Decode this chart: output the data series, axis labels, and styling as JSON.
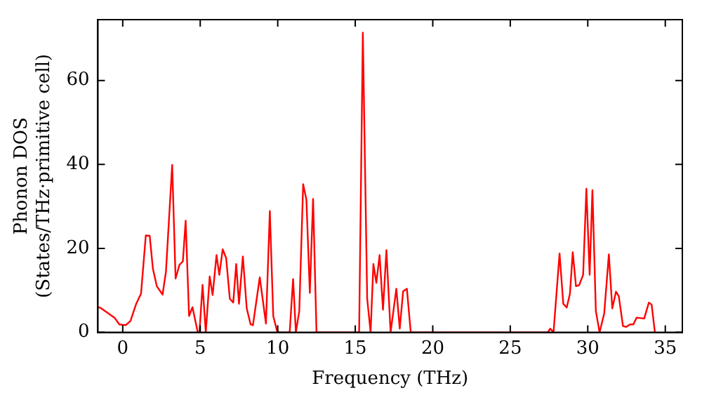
{
  "chart_data": {
    "type": "line",
    "xlabel": "Frequency (THz)",
    "ylabel": "Phonon DOS\n(States/THz·primitive cell)",
    "xlim": [
      -1.6,
      36.1
    ],
    "ylim": [
      0,
      74.5
    ],
    "xticks": [
      0,
      5,
      10,
      15,
      20,
      25,
      30,
      35
    ],
    "yticks": [
      0,
      20,
      40,
      60
    ],
    "grid": false,
    "legend": false,
    "marker": "none",
    "line_style": "solid",
    "series": [
      {
        "color": "#ff0000",
        "x": [
          -1.6,
          -1.46,
          -0.53,
          -0.22,
          0.19,
          0.5,
          0.87,
          1.18,
          1.49,
          1.74,
          1.95,
          2.2,
          2.57,
          2.79,
          3.19,
          3.41,
          3.66,
          3.88,
          4.06,
          4.28,
          4.5,
          4.84,
          4.95,
          5.15,
          5.36,
          5.61,
          5.8,
          6.05,
          6.23,
          6.45,
          6.67,
          6.91,
          7.13,
          7.32,
          7.5,
          7.75,
          8.0,
          8.25,
          8.4,
          8.84,
          9.24,
          9.49,
          9.71,
          9.95,
          10.1,
          10.77,
          10.99,
          11.17,
          11.39,
          11.64,
          11.85,
          12.07,
          12.28,
          12.5,
          15.25,
          15.49,
          15.77,
          15.99,
          16.17,
          16.36,
          16.57,
          16.79,
          17.01,
          17.28,
          17.65,
          17.87,
          18.09,
          18.33,
          18.58,
          27.42,
          27.58,
          27.79,
          28.18,
          28.42,
          28.64,
          28.85,
          29.03,
          29.24,
          29.45,
          29.7,
          29.91,
          30.12,
          30.3,
          30.52,
          30.76,
          31.06,
          31.36,
          31.58,
          31.82,
          32.0,
          32.27,
          32.48,
          32.73,
          32.94,
          33.15,
          33.64,
          33.94,
          34.12,
          34.33
        ],
        "values": [
          6,
          5.9,
          3.5,
          1.9,
          1.7,
          2.7,
          6.8,
          9.2,
          23.1,
          23,
          15.1,
          11,
          9,
          14.5,
          39.9,
          12.8,
          16.1,
          16.9,
          26.6,
          3.9,
          6,
          0,
          0,
          11.3,
          0,
          13.3,
          8.9,
          18.4,
          13.7,
          19.8,
          17.7,
          8,
          7.1,
          16.3,
          6.8,
          18.1,
          5.7,
          1.9,
          1.7,
          13.1,
          2.1,
          28.9,
          3.9,
          0.4,
          0,
          0,
          12.7,
          0,
          5.1,
          35.3,
          31.6,
          9.4,
          31.8,
          0,
          0,
          71.4,
          8,
          0,
          16.3,
          11.8,
          18.4,
          5.4,
          19.6,
          0,
          10.4,
          0.9,
          9.8,
          10.4,
          0,
          0,
          0.9,
          0,
          18.8,
          6.8,
          5.9,
          9.2,
          19.1,
          11,
          11.3,
          13.7,
          34.2,
          13.7,
          33.9,
          5.1,
          0,
          4.5,
          18.6,
          5.7,
          9.7,
          8.6,
          1.5,
          1.3,
          1.9,
          1.9,
          3.5,
          3.3,
          7.1,
          6.6,
          0
        ]
      }
    ]
  }
}
